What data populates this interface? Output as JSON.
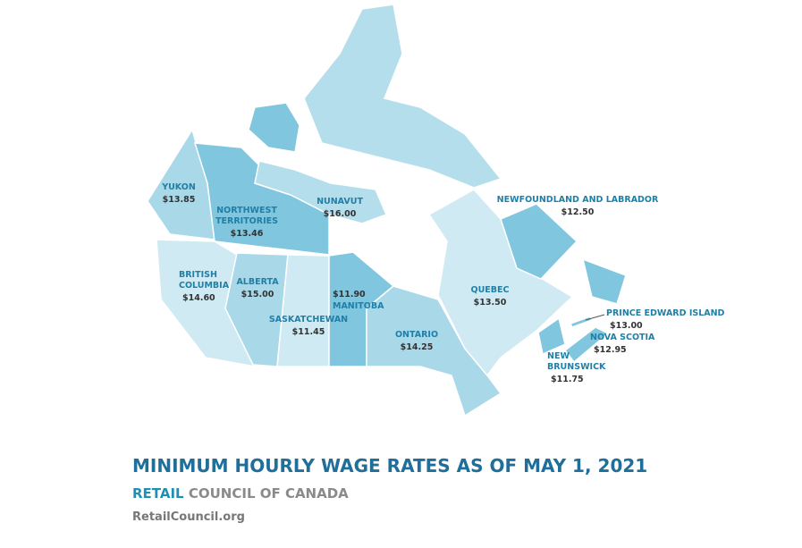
{
  "map": {
    "regions": [
      {
        "name_lines": [
          "YUKON"
        ],
        "wage": "$13.85"
      },
      {
        "name_lines": [
          "NORTHWEST",
          "TERRITORIES"
        ],
        "wage": "$13.46"
      },
      {
        "name_lines": [
          "NUNAVUT"
        ],
        "wage": "$16.00"
      },
      {
        "name_lines": [
          "BRITISH",
          "COLUMBIA"
        ],
        "wage": "$14.60"
      },
      {
        "name_lines": [
          "ALBERTA"
        ],
        "wage": "$15.00"
      },
      {
        "name_lines": [
          "SASKATCHEWAN"
        ],
        "wage": "$11.45"
      },
      {
        "name_lines": [
          "MANITOBA"
        ],
        "wage": "$11.90"
      },
      {
        "name_lines": [
          "ONTARIO"
        ],
        "wage": "$14.25"
      },
      {
        "name_lines": [
          "QUEBEC"
        ],
        "wage": "$13.50"
      },
      {
        "name_lines": [
          "NEWFOUNDLAND AND LABRADOR"
        ],
        "wage": "$12.50"
      },
      {
        "name_lines": [
          "PRINCE EDWARD ISLAND"
        ],
        "wage": "$13.00"
      },
      {
        "name_lines": [
          "NOVA SCOTIA"
        ],
        "wage": "$12.95"
      },
      {
        "name_lines": [
          "NEW",
          "BRUNSWICK"
        ],
        "wage": "$11.75"
      }
    ]
  },
  "footer": {
    "title": "MINIMUM HOURLY WAGE RATES AS OF MAY 1, 2021",
    "org_highlight": "RETAIL",
    "org_rest": "COUNCIL OF CANADA",
    "website": "RetailCouncil.org"
  }
}
